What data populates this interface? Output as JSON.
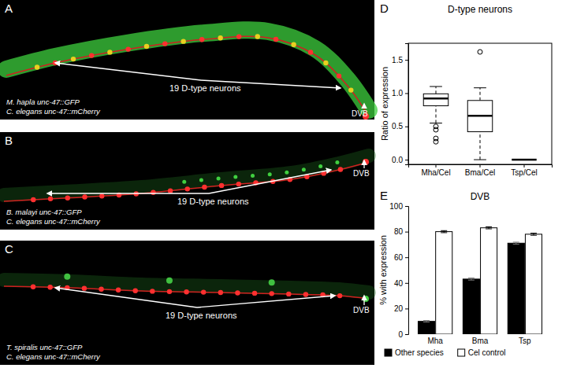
{
  "images": [
    {
      "panel": "A",
      "species_label": "M. hapla unc-47::GFP",
      "control_label": "C. elegans unc-47::mCherry",
      "neuron_label": "19 D-type neurons",
      "dvb_label": "DVB"
    },
    {
      "panel": "B",
      "species_label": "B. malayi unc-47::GFP",
      "control_label": "C. elegans unc-47::mCherry",
      "neuron_label": "19 D-type neurons",
      "dvb_label": "DVB"
    },
    {
      "panel": "C",
      "species_label": "T. spiralis unc-47::GFP",
      "control_label": "C. elegans unc-47::mCherry",
      "neuron_label": "19 D-type neurons",
      "dvb_label": "DVB"
    }
  ],
  "chart_data": [
    {
      "panel": "D",
      "type": "box",
      "title": "D-type neurons",
      "y_label": "Ratio of expression",
      "categories": [
        "Mha/Cel",
        "Bma/Cel",
        "Tsp/Cel"
      ],
      "boxes": [
        {
          "whisker_low": 0.55,
          "q1": 0.81,
          "median": 0.92,
          "q3": 0.99,
          "whisker_high": 1.1,
          "outliers": [
            0.5,
            0.45,
            0.32,
            0.27
          ]
        },
        {
          "whisker_low": 0.0,
          "q1": 0.42,
          "median": 0.66,
          "q3": 0.89,
          "whisker_high": 1.08,
          "outliers": [
            1.62
          ]
        },
        {
          "whisker_low": 0.0,
          "q1": 0.0,
          "median": 0.0,
          "q3": 0.0,
          "whisker_high": 0.0,
          "outliers": []
        }
      ],
      "ylim": [
        -0.07,
        1.75
      ],
      "yticks": [
        {
          "value": 0,
          "label": "0.0"
        },
        {
          "value": 0.5,
          "label": "0.5"
        },
        {
          "value": 1,
          "label": "1.0"
        },
        {
          "value": 1.5,
          "label": "1.5"
        }
      ]
    },
    {
      "panel": "E",
      "type": "bar",
      "title": "DVB",
      "y_label": "% with expression",
      "categories": [
        "Mha",
        "Bma",
        "Tsp"
      ],
      "series": [
        {
          "name": "Other species",
          "color": "#000000",
          "values": [
            10,
            43,
            71
          ],
          "errors": [
            0.6,
            0.8,
            0.8
          ]
        },
        {
          "name": "Cel control",
          "color": "#ffffff",
          "values": [
            80,
            83,
            78
          ],
          "errors": [
            0.8,
            0.8,
            0.8
          ]
        }
      ],
      "ylim": [
        0,
        100
      ],
      "yticks": [
        0,
        20,
        40,
        60,
        80,
        100
      ],
      "legend": "bottom"
    }
  ]
}
